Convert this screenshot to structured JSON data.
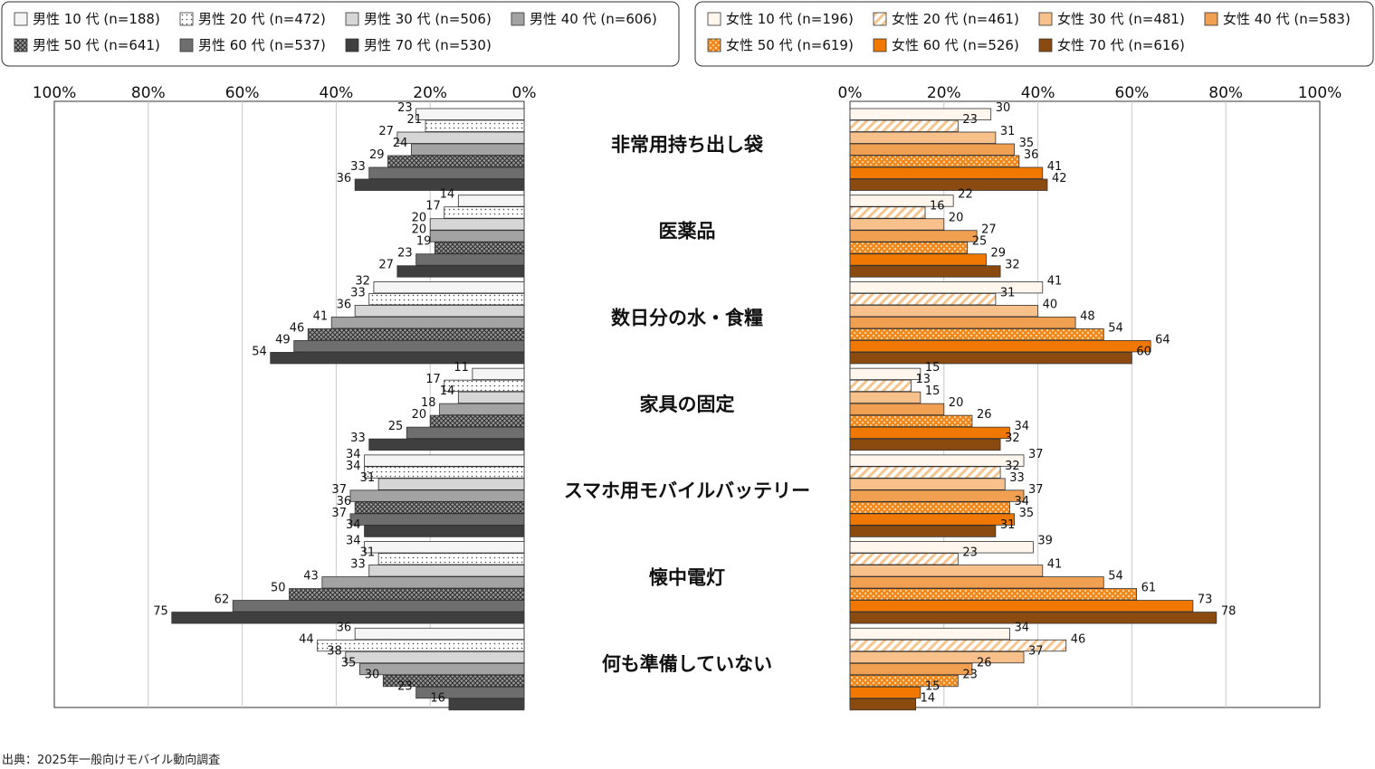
{
  "source_note": "出典：2025年一般向けモバイル動向調査",
  "colors": {
    "frame": "#333333",
    "grid": "#c8c8c8",
    "male": [
      "#f5f5f5",
      "#ffffff",
      "#d6d6d6",
      "#a3a3a3",
      "#b0b0b0",
      "#6e6e6e",
      "#3f3f3f"
    ],
    "male_pattern": [
      "solid",
      "dots",
      "solid",
      "solid",
      "crosshatch",
      "solid",
      "solid"
    ],
    "female": [
      "#fff6ee",
      "#ffffff",
      "#f8c08a",
      "#f0a050",
      "#f08a20",
      "#f07800",
      "#8b4a10"
    ],
    "female_pattern": [
      "solid",
      "diagonal",
      "solid",
      "solid",
      "white-dots",
      "solid",
      "solid"
    ]
  },
  "chart_data": [
    {
      "type": "bar",
      "orientation": "horizontal-reversed",
      "xlim": [
        0,
        100
      ],
      "tick_labels": [
        "100%",
        "80%",
        "60%",
        "40%",
        "20%",
        "0%"
      ],
      "categories": [
        "非常用持ち出し袋",
        "医薬品",
        "数日分の水・食糧",
        "家具の固定",
        "スマホ用モバイルバッテリー",
        "懐中電灯",
        "何も準備していない"
      ],
      "series": [
        {
          "name": "男性 10 代 (n=188)",
          "values": [
            23,
            14,
            32,
            11,
            34,
            34,
            36
          ]
        },
        {
          "name": "男性 20 代 (n=472)",
          "values": [
            21,
            17,
            33,
            17,
            34,
            31,
            44
          ]
        },
        {
          "name": "男性 30 代 (n=506)",
          "values": [
            27,
            20,
            36,
            14,
            31,
            33,
            38
          ]
        },
        {
          "name": "男性 40 代 (n=606)",
          "values": [
            24,
            20,
            41,
            18,
            37,
            43,
            35
          ]
        },
        {
          "name": "男性 50 代 (n=641)",
          "values": [
            29,
            19,
            46,
            20,
            36,
            50,
            30
          ]
        },
        {
          "name": "男性 60 代 (n=537)",
          "values": [
            33,
            23,
            49,
            25,
            37,
            62,
            23
          ]
        },
        {
          "name": "男性 70 代 (n=530)",
          "values": [
            36,
            27,
            54,
            33,
            34,
            75,
            16
          ]
        }
      ],
      "legend": "top-left"
    },
    {
      "type": "bar",
      "orientation": "horizontal",
      "xlim": [
        0,
        100
      ],
      "tick_labels": [
        "0%",
        "20%",
        "40%",
        "60%",
        "80%",
        "100%"
      ],
      "categories": [
        "非常用持ち出し袋",
        "医薬品",
        "数日分の水・食糧",
        "家具の固定",
        "スマホ用モバイルバッテリー",
        "懐中電灯",
        "何も準備していない"
      ],
      "series": [
        {
          "name": "女性 10 代 (n=196)",
          "values": [
            30,
            22,
            41,
            15,
            37,
            39,
            34
          ]
        },
        {
          "name": "女性 20 代 (n=461)",
          "values": [
            23,
            16,
            31,
            13,
            32,
            23,
            46
          ]
        },
        {
          "name": "女性 30 代 (n=481)",
          "values": [
            31,
            20,
            40,
            15,
            33,
            41,
            37
          ]
        },
        {
          "name": "女性 40 代 (n=583)",
          "values": [
            35,
            27,
            48,
            20,
            37,
            54,
            26
          ]
        },
        {
          "name": "女性 50 代 (n=619)",
          "values": [
            36,
            25,
            54,
            26,
            34,
            61,
            23
          ]
        },
        {
          "name": "女性 60 代 (n=526)",
          "values": [
            41,
            29,
            64,
            34,
            35,
            73,
            15
          ]
        },
        {
          "name": "女性 70 代 (n=616)",
          "values": [
            42,
            32,
            60,
            32,
            31,
            78,
            14
          ]
        }
      ],
      "legend": "top-right"
    }
  ]
}
